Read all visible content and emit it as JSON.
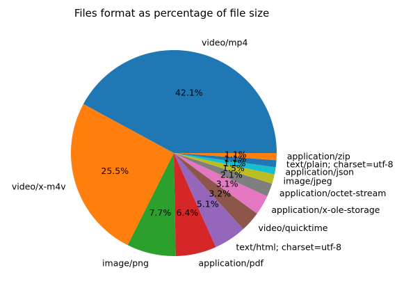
{
  "chart_data": {
    "type": "pie",
    "title": "Files format as percentage of file size",
    "start_angle_deg": 0,
    "direction": "counterclockwise",
    "slices": [
      {
        "label": "video/mp4",
        "value": 42.1,
        "pct_label": "42.1%",
        "color": "#1f77b4"
      },
      {
        "label": "video/x-m4v",
        "value": 25.5,
        "pct_label": "25.5%",
        "color": "#ff7f0e"
      },
      {
        "label": "image/png",
        "value": 7.7,
        "pct_label": "7.7%",
        "color": "#2ca02c"
      },
      {
        "label": "application/pdf",
        "value": 6.4,
        "pct_label": "6.4%",
        "color": "#d62728"
      },
      {
        "label": "text/html; charset=utf-8",
        "value": 5.1,
        "pct_label": "5.1%",
        "color": "#9467bd"
      },
      {
        "label": "video/quicktime",
        "value": 3.2,
        "pct_label": "3.2%",
        "color": "#8c564b"
      },
      {
        "label": "application/x-ole-storage",
        "value": 3.1,
        "pct_label": "3.1%",
        "color": "#e377c2"
      },
      {
        "label": "application/octet-stream",
        "value": 2.1,
        "pct_label": "2.1%",
        "color": "#7f7f7f"
      },
      {
        "label": "image/jpeg",
        "value": 1.5,
        "pct_label": "1.5%",
        "color": "#bcbd22"
      },
      {
        "label": "application/json",
        "value": 1.1,
        "pct_label": "1.1%",
        "color": "#17becf"
      },
      {
        "label": "text/plain; charset=utf-8",
        "value": 1.1,
        "pct_label": "1.1%",
        "color": "#1f77b4"
      },
      {
        "label": "application/zip",
        "value": 1.1,
        "pct_label": "1.1%",
        "color": "#ff7f0e"
      }
    ]
  }
}
